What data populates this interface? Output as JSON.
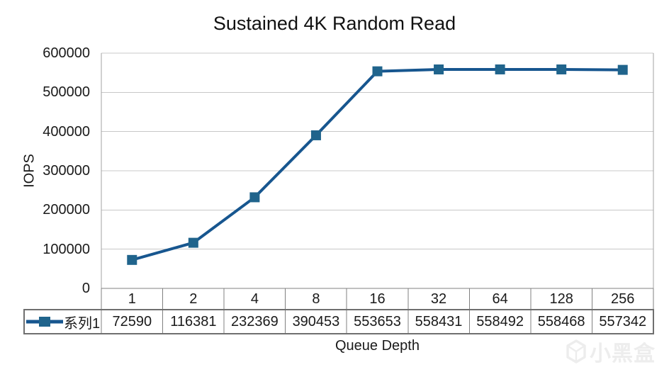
{
  "chart_data": {
    "type": "line",
    "title": "Sustained 4K Random Read",
    "xlabel": "Queue Depth",
    "ylabel": "IOPS",
    "categories": [
      "1",
      "2",
      "4",
      "8",
      "16",
      "32",
      "64",
      "128",
      "256"
    ],
    "series": [
      {
        "name": "系列1",
        "values": [
          72590,
          116381,
          232369,
          390453,
          553653,
          558431,
          558492,
          558468,
          557342
        ]
      }
    ],
    "ylim": [
      0,
      600000
    ],
    "ytick_step": 100000,
    "grid": true,
    "legend_position": "table-left",
    "marker": "square",
    "colors": {
      "line": "#17568F",
      "marker": "#20648C",
      "gridline": "#C8C8C8",
      "plot_border": "#A3A3A3",
      "table_border": "#808080",
      "table_outline": "#6F6F6F",
      "text": "#1a1a1a"
    }
  },
  "watermark": {
    "text": "小黑盒"
  }
}
